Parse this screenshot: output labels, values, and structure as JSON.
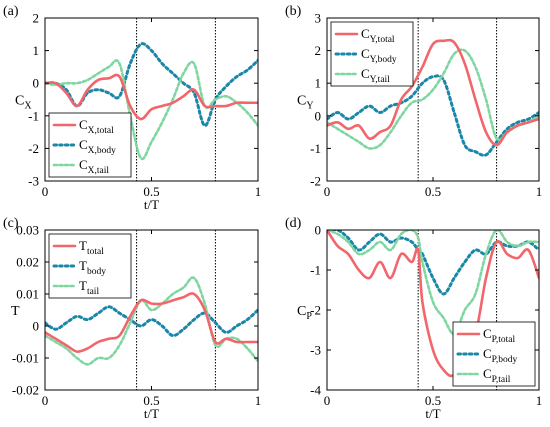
{
  "colors": {
    "total": "#f2666b",
    "body": "#1a87a8",
    "tail": "#7fd6a0",
    "axis": "#000000",
    "vline": "#000000"
  },
  "chart_data": [
    {
      "type": "line",
      "panel_label": "(a)",
      "ylabel": "C",
      "ylabel_sub": "X",
      "xlabel": "t/T",
      "xlim": [
        0,
        1
      ],
      "ylim": [
        -3,
        2
      ],
      "xticks": [
        0,
        0.5,
        1
      ],
      "xtick_labels": [
        "0",
        "0.5",
        "1"
      ],
      "yticks": [
        -3,
        -2,
        -1,
        0,
        1,
        2
      ],
      "ytick_labels": [
        "-3",
        "-2",
        "-1",
        "0",
        "1",
        "2"
      ],
      "vlines": [
        0.43,
        0.8
      ],
      "legend_position": "bottom-left",
      "series": [
        {
          "key": "total",
          "name": "C",
          "sub": "X,total",
          "x": [
            0,
            0.05,
            0.1,
            0.15,
            0.2,
            0.25,
            0.3,
            0.35,
            0.4,
            0.45,
            0.5,
            0.55,
            0.6,
            0.65,
            0.7,
            0.75,
            0.8,
            0.85,
            0.9,
            0.95,
            1
          ],
          "y": [
            0,
            0,
            -0.3,
            -0.7,
            -0.2,
            0.1,
            0.15,
            0.2,
            -0.7,
            -1.1,
            -0.8,
            -0.7,
            -0.6,
            -0.4,
            -0.2,
            -0.7,
            -0.7,
            -0.7,
            -0.6,
            -0.6,
            -0.6
          ]
        },
        {
          "key": "body",
          "name": "C",
          "sub": "X,body",
          "x": [
            0,
            0.05,
            0.1,
            0.15,
            0.2,
            0.25,
            0.3,
            0.35,
            0.4,
            0.45,
            0.5,
            0.55,
            0.6,
            0.65,
            0.7,
            0.75,
            0.8,
            0.85,
            0.9,
            0.95,
            1
          ],
          "y": [
            0,
            0,
            -0.2,
            -0.7,
            -0.3,
            -0.2,
            -0.3,
            -0.4,
            0.6,
            1.2,
            1.0,
            0.6,
            0.3,
            0.0,
            -0.3,
            -1.3,
            -0.5,
            -0.1,
            0.2,
            0.4,
            0.7
          ]
        },
        {
          "key": "tail",
          "name": "C",
          "sub": "X,tail",
          "x": [
            0,
            0.05,
            0.1,
            0.15,
            0.2,
            0.25,
            0.3,
            0.35,
            0.4,
            0.45,
            0.5,
            0.55,
            0.6,
            0.65,
            0.7,
            0.75,
            0.8,
            0.85,
            0.9,
            0.95,
            1
          ],
          "y": [
            0,
            -0.05,
            0.0,
            0.0,
            0.1,
            0.3,
            0.5,
            0.6,
            -1.0,
            -2.3,
            -1.8,
            -1.2,
            -0.5,
            0.3,
            0.6,
            -0.7,
            -0.5,
            -0.4,
            -0.6,
            -0.9,
            -1.3
          ]
        }
      ]
    },
    {
      "type": "line",
      "panel_label": "(b)",
      "ylabel": "C",
      "ylabel_sub": "Y",
      "xlabel": "",
      "xlim": [
        0,
        1
      ],
      "ylim": [
        -2,
        3
      ],
      "xticks": [
        0,
        0.5,
        1
      ],
      "xtick_labels": [
        "0",
        "0.5",
        "1"
      ],
      "yticks": [
        -2,
        -1,
        0,
        1,
        2,
        3
      ],
      "ytick_labels": [
        "-2",
        "-1",
        "0",
        "1",
        "2",
        "3"
      ],
      "vlines": [
        0.43,
        0.8
      ],
      "legend_position": "top-left",
      "series": [
        {
          "key": "total",
          "name": "C",
          "sub": "Y,total",
          "x": [
            0,
            0.05,
            0.1,
            0.15,
            0.2,
            0.25,
            0.3,
            0.35,
            0.4,
            0.45,
            0.5,
            0.55,
            0.6,
            0.65,
            0.7,
            0.75,
            0.8,
            0.85,
            0.9,
            0.95,
            1
          ],
          "y": [
            -0.3,
            -0.2,
            -0.4,
            -0.3,
            -0.7,
            -0.5,
            -0.3,
            0.5,
            0.9,
            1.5,
            2.2,
            2.3,
            2.25,
            1.6,
            0.5,
            -0.5,
            -0.9,
            -0.5,
            -0.3,
            -0.2,
            -0.1
          ]
        },
        {
          "key": "body",
          "name": "C",
          "sub": "Y,body",
          "x": [
            0,
            0.05,
            0.1,
            0.15,
            0.2,
            0.25,
            0.3,
            0.35,
            0.4,
            0.45,
            0.5,
            0.55,
            0.6,
            0.65,
            0.7,
            0.75,
            0.8,
            0.85,
            0.9,
            0.95,
            1
          ],
          "y": [
            -0.1,
            0.1,
            -0.1,
            0.1,
            0.3,
            0.1,
            0.3,
            0.4,
            0.6,
            1.0,
            1.2,
            1.1,
            0.1,
            -0.9,
            -1.1,
            -1.2,
            -0.8,
            -0.4,
            -0.2,
            -0.1,
            0.1
          ]
        },
        {
          "key": "tail",
          "name": "C",
          "sub": "Y,tail",
          "x": [
            0,
            0.05,
            0.1,
            0.15,
            0.2,
            0.25,
            0.3,
            0.35,
            0.4,
            0.45,
            0.5,
            0.55,
            0.6,
            0.65,
            0.7,
            0.75,
            0.8,
            0.85,
            0.9,
            0.95,
            1
          ],
          "y": [
            -0.2,
            -0.4,
            -0.6,
            -0.8,
            -1.0,
            -0.9,
            -0.5,
            0.0,
            0.4,
            0.5,
            0.8,
            1.3,
            1.9,
            2.0,
            1.5,
            0.5,
            -0.7,
            -0.5,
            -0.3,
            -0.2,
            0.0
          ]
        }
      ]
    },
    {
      "type": "line",
      "panel_label": "(c)",
      "ylabel": "T",
      "ylabel_sub": "",
      "xlabel": "t/T",
      "xlim": [
        0,
        1
      ],
      "ylim": [
        -0.02,
        0.03
      ],
      "xticks": [
        0,
        0.5,
        1
      ],
      "xtick_labels": [
        "0",
        "0.5",
        "1"
      ],
      "yticks": [
        -0.02,
        -0.01,
        0,
        0.01,
        0.02,
        0.03
      ],
      "ytick_labels": [
        "-0.02",
        "-0.01",
        "0",
        "0.01",
        "0.02",
        "0.03"
      ],
      "vlines": [
        0.43,
        0.8
      ],
      "legend_position": "top-left",
      "series": [
        {
          "key": "total",
          "name": "T",
          "sub": "total",
          "x": [
            0,
            0.05,
            0.1,
            0.15,
            0.2,
            0.25,
            0.3,
            0.35,
            0.4,
            0.45,
            0.5,
            0.55,
            0.6,
            0.65,
            0.7,
            0.75,
            0.8,
            0.85,
            0.9,
            0.95,
            1
          ],
          "y": [
            -0.002,
            -0.004,
            -0.006,
            -0.008,
            -0.007,
            -0.005,
            -0.004,
            -0.003,
            0.003,
            0.008,
            0.007,
            0.007,
            0.008,
            0.009,
            0.01,
            0.005,
            -0.005,
            -0.004,
            -0.005,
            -0.005,
            -0.005
          ]
        },
        {
          "key": "body",
          "name": "T",
          "sub": "body",
          "x": [
            0,
            0.05,
            0.1,
            0.15,
            0.2,
            0.25,
            0.3,
            0.35,
            0.4,
            0.45,
            0.5,
            0.55,
            0.6,
            0.65,
            0.7,
            0.75,
            0.8,
            0.85,
            0.9,
            0.95,
            1
          ],
          "y": [
            0.001,
            -0.001,
            0.001,
            0.003,
            0.002,
            0.004,
            0.006,
            0.004,
            0.002,
            0.0,
            0.002,
            0.0,
            -0.003,
            -0.001,
            0.002,
            0.004,
            0.001,
            -0.002,
            0.0,
            0.002,
            0.005
          ]
        },
        {
          "key": "tail",
          "name": "T",
          "sub": "tail",
          "x": [
            0,
            0.05,
            0.1,
            0.15,
            0.2,
            0.25,
            0.3,
            0.35,
            0.4,
            0.45,
            0.5,
            0.55,
            0.6,
            0.65,
            0.7,
            0.75,
            0.8,
            0.85,
            0.9,
            0.95,
            1
          ],
          "y": [
            -0.003,
            -0.005,
            -0.007,
            -0.01,
            -0.012,
            -0.01,
            -0.01,
            -0.006,
            0.001,
            0.008,
            0.005,
            0.007,
            0.01,
            0.012,
            0.015,
            0.007,
            -0.006,
            -0.004,
            -0.004,
            -0.007,
            -0.011
          ]
        }
      ]
    },
    {
      "type": "line",
      "panel_label": "(d)",
      "ylabel": "C",
      "ylabel_sub": "P",
      "xlabel": "t/T",
      "xlim": [
        0,
        1
      ],
      "ylim": [
        -4,
        0
      ],
      "xticks": [
        0,
        0.5,
        1
      ],
      "xtick_labels": [
        "0",
        "0.5",
        "1"
      ],
      "yticks": [
        -4,
        -3,
        -2,
        -1,
        0
      ],
      "ytick_labels": [
        "-4",
        "-3",
        "-2",
        "-1",
        "0"
      ],
      "vlines": [
        0.43,
        0.8
      ],
      "legend_position": "bottom-right",
      "series": [
        {
          "key": "total",
          "name": "C",
          "sub": "P,total",
          "x": [
            0,
            0.05,
            0.1,
            0.15,
            0.2,
            0.25,
            0.3,
            0.35,
            0.4,
            0.43,
            0.45,
            0.5,
            0.55,
            0.6,
            0.65,
            0.7,
            0.75,
            0.8,
            0.85,
            0.9,
            0.95,
            1
          ],
          "y": [
            0,
            -0.4,
            -0.6,
            -1.0,
            -1.2,
            -0.8,
            -1.2,
            -0.6,
            -0.8,
            -0.5,
            -1.8,
            -3.0,
            -3.5,
            -3.6,
            -2.8,
            -2.6,
            -1.2,
            -0.3,
            -0.6,
            -0.7,
            -0.5,
            -1.2
          ]
        },
        {
          "key": "body",
          "name": "C",
          "sub": "P,body",
          "x": [
            0,
            0.05,
            0.1,
            0.15,
            0.2,
            0.25,
            0.3,
            0.35,
            0.4,
            0.43,
            0.45,
            0.5,
            0.55,
            0.6,
            0.65,
            0.7,
            0.75,
            0.8,
            0.85,
            0.9,
            0.95,
            1
          ],
          "y": [
            0,
            0,
            -0.2,
            -0.5,
            -0.3,
            -0.1,
            -0.3,
            -0.2,
            -0.3,
            -0.5,
            -0.6,
            -1.2,
            -1.6,
            -1.2,
            -0.8,
            -0.5,
            -0.6,
            -0.3,
            -0.4,
            -0.4,
            -0.3,
            -0.5
          ]
        },
        {
          "key": "tail",
          "name": "C",
          "sub": "P,tail",
          "x": [
            0,
            0.05,
            0.1,
            0.15,
            0.2,
            0.25,
            0.3,
            0.35,
            0.4,
            0.43,
            0.45,
            0.5,
            0.55,
            0.6,
            0.65,
            0.7,
            0.75,
            0.8,
            0.85,
            0.9,
            0.95,
            1
          ],
          "y": [
            0,
            -0.1,
            -0.3,
            -0.6,
            -0.5,
            -0.3,
            -0.5,
            -0.1,
            0.0,
            -0.2,
            -0.8,
            -1.8,
            -2.2,
            -2.6,
            -2.0,
            -1.6,
            -0.6,
            0.0,
            -0.3,
            -0.4,
            -0.3,
            -0.3
          ]
        }
      ]
    }
  ]
}
